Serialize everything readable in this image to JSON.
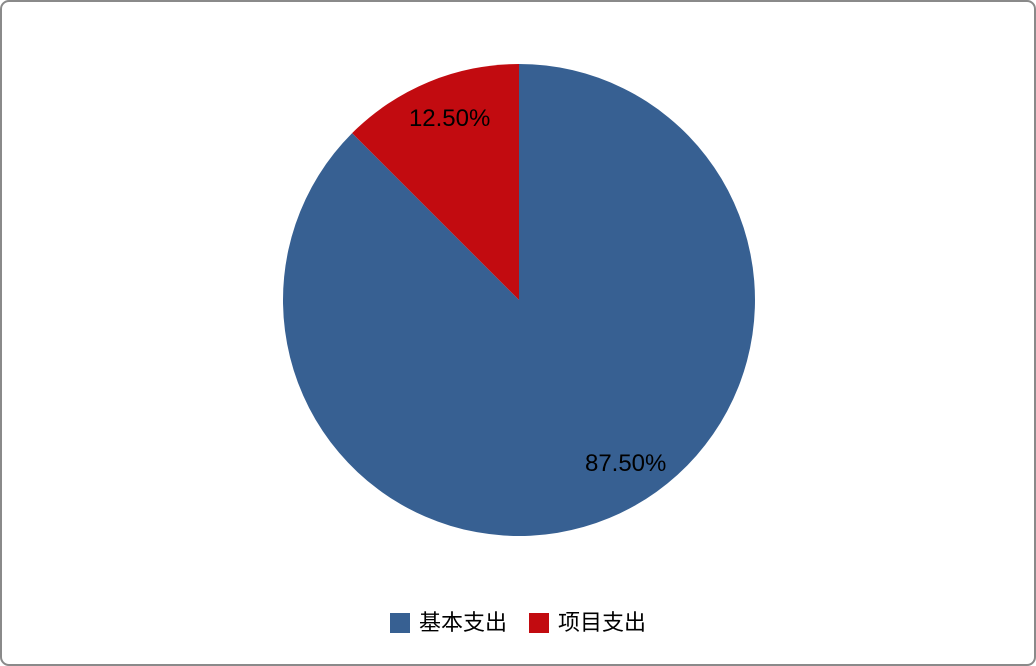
{
  "chart_data": {
    "type": "pie",
    "title": "",
    "start_angle_deg": 0,
    "direction": "clockwise",
    "legend_position": "bottom",
    "label_color": "#000000",
    "slices": [
      {
        "name": "基本支出",
        "value": 87.5,
        "label": "87.50%",
        "color": "#376092",
        "label_angle_deg": 147,
        "label_radius_frac": 0.83
      },
      {
        "name": "项目支出",
        "value": 12.5,
        "label": "12.50%",
        "color": "#C20B10",
        "label_angle_deg": 339,
        "label_radius_frac": 0.82
      }
    ]
  },
  "frame": {
    "background": "#FFFFFF",
    "border_color": "#8A8A8A"
  }
}
